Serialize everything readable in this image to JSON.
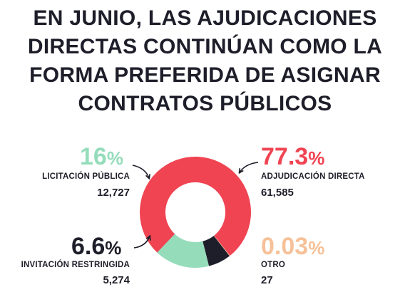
{
  "title_lines": [
    "EN JUNIO, LAS AJUDICACIONES",
    "DIRECTAS CONTINÚAN COMO LA",
    "FORMA PREFERIDA DE ASIGNAR",
    "CONTRATOS PÚBLICOS"
  ],
  "colors": {
    "adjudicacion": "#f04452",
    "licitacion": "#95dcbb",
    "invitacion": "#1e1e2a",
    "otro": "#f6c199",
    "text": "#1e1e2a"
  },
  "chart_data": {
    "type": "pie",
    "title": "EN JUNIO, LAS AJUDICACIONES DIRECTAS CONTINÚAN COMO LA FORMA PREFERIDA DE ASIGNAR CONTRATOS PÚBLICOS",
    "slices": [
      {
        "label": "ADJUDICACIÓN DIRECTA",
        "percent": 77.3,
        "percent_text": "77.3",
        "count": "61,585",
        "color": "#f04452"
      },
      {
        "label": "OTRO",
        "percent": 0.03,
        "percent_text": "0.03",
        "count": "27",
        "color": "#f6c199"
      },
      {
        "label": "INVITACIÓN RESTRINGIDA",
        "percent": 6.6,
        "percent_text": "6.6",
        "count": "5,274",
        "color": "#1e1e2a"
      },
      {
        "label": "LICITACIÓN PÚBLICA",
        "percent": 16,
        "percent_text": "16",
        "count": "12,727",
        "color": "#95dcbb"
      }
    ],
    "percent_symbol": "%",
    "donut": true
  }
}
